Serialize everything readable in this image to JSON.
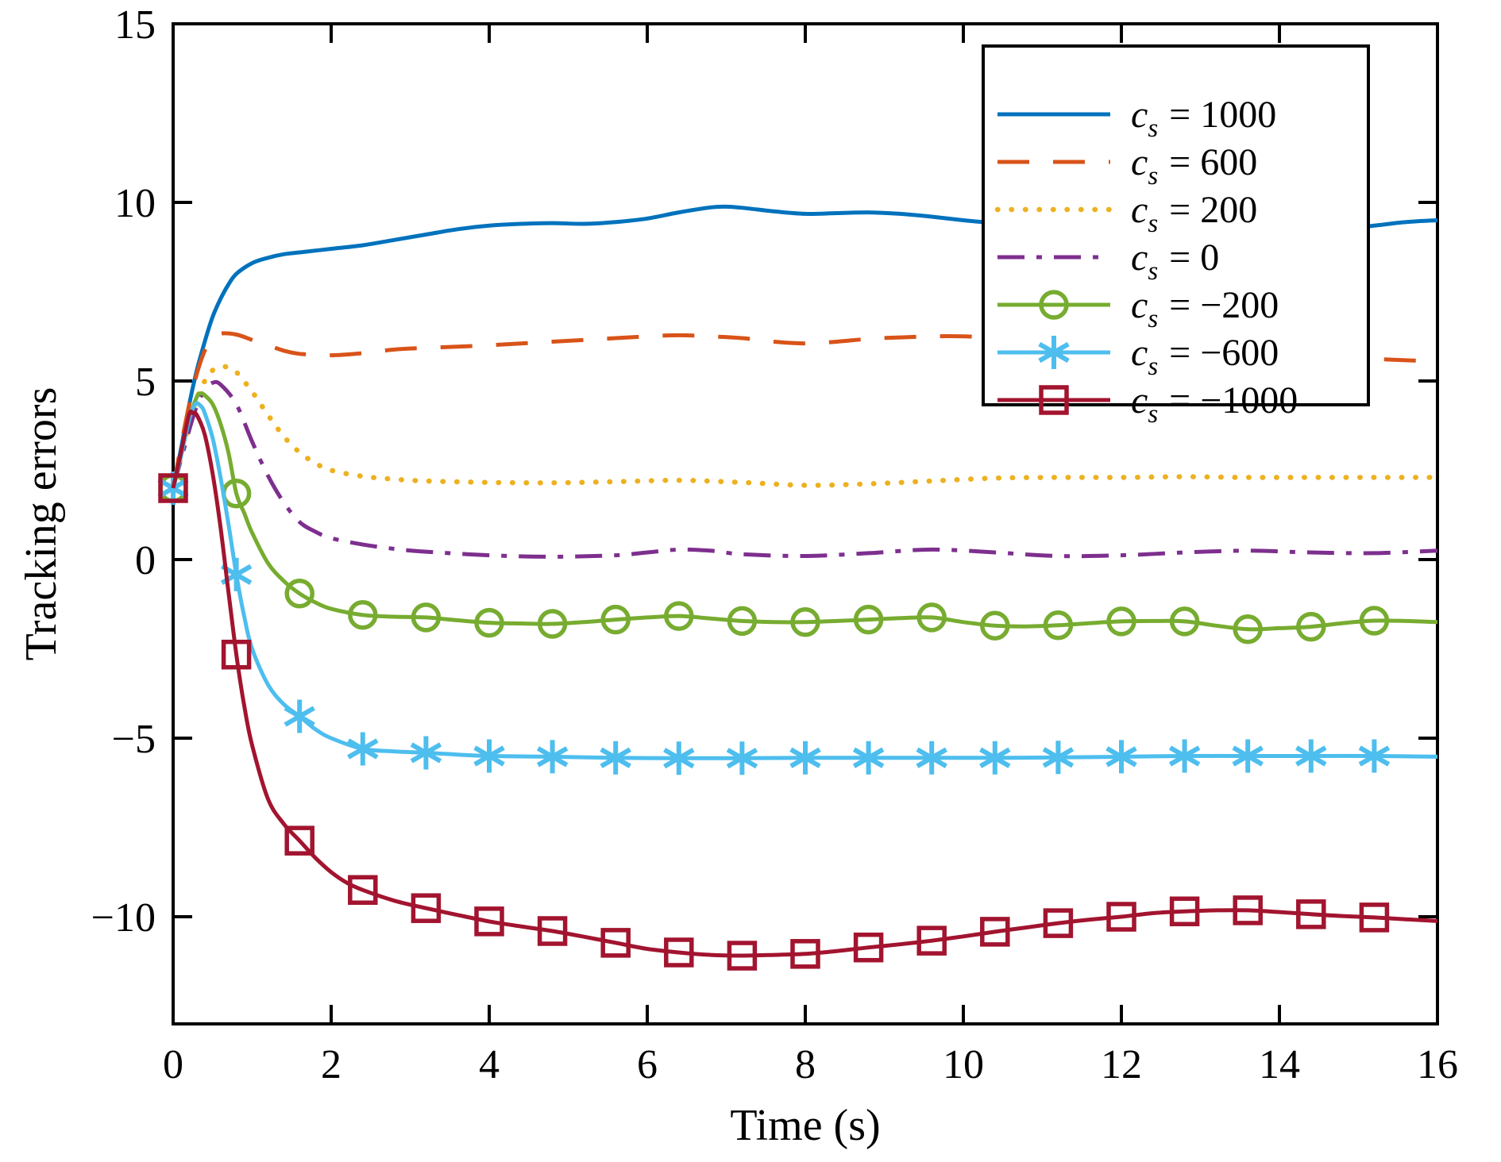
{
  "chart_data": {
    "type": "line",
    "title": "",
    "xlabel": "Time (s)",
    "ylabel": "Tracking errors",
    "xlim": [
      0,
      16
    ],
    "ylim": [
      -13,
      15
    ],
    "xticks": [
      0,
      2,
      4,
      6,
      8,
      10,
      12,
      14,
      16
    ],
    "yticks": [
      15,
      10,
      5,
      0,
      -5,
      -10
    ],
    "grid": false,
    "axis_color": "#000000",
    "background_color": "#ffffff",
    "legend_position": "top-right",
    "marker_step": 0.8,
    "marker_last_t": 15.2,
    "series": [
      {
        "name": "cs-1000",
        "label_value": "1000",
        "color": "#0072BD",
        "style": "solid",
        "marker": "none",
        "points": [
          [
            0,
            2.0
          ],
          [
            0.1,
            3.1
          ],
          [
            0.2,
            4.3
          ],
          [
            0.3,
            5.3
          ],
          [
            0.4,
            6.1
          ],
          [
            0.5,
            6.8
          ],
          [
            0.6,
            7.3
          ],
          [
            0.7,
            7.7
          ],
          [
            0.8,
            8.0
          ],
          [
            1.0,
            8.3
          ],
          [
            1.2,
            8.45
          ],
          [
            1.4,
            8.55
          ],
          [
            1.6,
            8.6
          ],
          [
            2.0,
            8.7
          ],
          [
            2.4,
            8.8
          ],
          [
            2.8,
            8.95
          ],
          [
            3.2,
            9.1
          ],
          [
            3.6,
            9.25
          ],
          [
            4.0,
            9.35
          ],
          [
            4.4,
            9.4
          ],
          [
            4.8,
            9.42
          ],
          [
            5.2,
            9.4
          ],
          [
            5.6,
            9.45
          ],
          [
            6.0,
            9.55
          ],
          [
            6.4,
            9.72
          ],
          [
            6.8,
            9.86
          ],
          [
            7.0,
            9.88
          ],
          [
            7.2,
            9.85
          ],
          [
            7.6,
            9.75
          ],
          [
            8.0,
            9.68
          ],
          [
            8.4,
            9.7
          ],
          [
            8.8,
            9.72
          ],
          [
            9.2,
            9.68
          ],
          [
            9.6,
            9.6
          ],
          [
            10.0,
            9.5
          ],
          [
            10.4,
            9.42
          ],
          [
            11.0,
            9.3
          ],
          [
            12.0,
            9.25
          ],
          [
            13.0,
            9.3
          ],
          [
            14.0,
            9.3
          ],
          [
            15.0,
            9.32
          ],
          [
            15.2,
            9.35
          ],
          [
            15.6,
            9.45
          ],
          [
            16,
            9.5
          ]
        ]
      },
      {
        "name": "cs-600",
        "label_value": "600",
        "color": "#D95319",
        "style": "dashed",
        "marker": "none",
        "points": [
          [
            0,
            2.0
          ],
          [
            0.1,
            3.2
          ],
          [
            0.2,
            4.3
          ],
          [
            0.3,
            5.2
          ],
          [
            0.4,
            5.85
          ],
          [
            0.5,
            6.2
          ],
          [
            0.6,
            6.33
          ],
          [
            0.8,
            6.3
          ],
          [
            1.0,
            6.15
          ],
          [
            1.2,
            6.0
          ],
          [
            1.4,
            5.85
          ],
          [
            1.6,
            5.76
          ],
          [
            2.0,
            5.72
          ],
          [
            2.4,
            5.78
          ],
          [
            2.8,
            5.88
          ],
          [
            3.2,
            5.93
          ],
          [
            3.6,
            5.96
          ],
          [
            4.0,
            6.0
          ],
          [
            4.4,
            6.05
          ],
          [
            4.8,
            6.1
          ],
          [
            5.2,
            6.15
          ],
          [
            5.6,
            6.2
          ],
          [
            6.0,
            6.25
          ],
          [
            6.4,
            6.28
          ],
          [
            6.8,
            6.25
          ],
          [
            7.2,
            6.2
          ],
          [
            7.6,
            6.1
          ],
          [
            8.0,
            6.05
          ],
          [
            8.4,
            6.1
          ],
          [
            8.8,
            6.18
          ],
          [
            9.2,
            6.22
          ],
          [
            9.6,
            6.25
          ],
          [
            10.0,
            6.25
          ],
          [
            10.4,
            6.2
          ],
          [
            11.0,
            6.1
          ],
          [
            11.6,
            6.0
          ],
          [
            12.2,
            5.95
          ],
          [
            12.8,
            5.9
          ],
          [
            13.4,
            5.85
          ],
          [
            14.0,
            5.8
          ],
          [
            14.6,
            5.7
          ],
          [
            15.2,
            5.62
          ],
          [
            15.6,
            5.58
          ],
          [
            16,
            5.55
          ]
        ]
      },
      {
        "name": "cs-200",
        "label_value": "200",
        "color": "#EDB120",
        "style": "dotted",
        "marker": "none",
        "points": [
          [
            0,
            2.0
          ],
          [
            0.1,
            2.9
          ],
          [
            0.2,
            3.8
          ],
          [
            0.3,
            4.5
          ],
          [
            0.4,
            5.0
          ],
          [
            0.5,
            5.3
          ],
          [
            0.6,
            5.4
          ],
          [
            0.7,
            5.38
          ],
          [
            0.8,
            5.25
          ],
          [
            1.0,
            4.7
          ],
          [
            1.2,
            4.05
          ],
          [
            1.4,
            3.45
          ],
          [
            1.6,
            3.0
          ],
          [
            1.8,
            2.7
          ],
          [
            2.0,
            2.5
          ],
          [
            2.4,
            2.33
          ],
          [
            2.8,
            2.25
          ],
          [
            3.2,
            2.2
          ],
          [
            4.0,
            2.16
          ],
          [
            4.8,
            2.15
          ],
          [
            5.6,
            2.18
          ],
          [
            6.4,
            2.22
          ],
          [
            7.2,
            2.16
          ],
          [
            8.0,
            2.08
          ],
          [
            8.8,
            2.12
          ],
          [
            9.6,
            2.2
          ],
          [
            10.4,
            2.28
          ],
          [
            11.2,
            2.3
          ],
          [
            12.0,
            2.3
          ],
          [
            12.8,
            2.32
          ],
          [
            13.6,
            2.3
          ],
          [
            14.4,
            2.3
          ],
          [
            15.2,
            2.3
          ],
          [
            16,
            2.3
          ]
        ]
      },
      {
        "name": "cs-0",
        "label_value": "0",
        "color": "#7E2F8E",
        "style": "dashdot",
        "marker": "none",
        "points": [
          [
            0,
            2.0
          ],
          [
            0.1,
            2.8
          ],
          [
            0.2,
            3.6
          ],
          [
            0.3,
            4.3
          ],
          [
            0.4,
            4.75
          ],
          [
            0.5,
            4.95
          ],
          [
            0.6,
            4.9
          ],
          [
            0.8,
            4.35
          ],
          [
            1.0,
            3.3
          ],
          [
            1.2,
            2.35
          ],
          [
            1.4,
            1.6
          ],
          [
            1.6,
            1.05
          ],
          [
            1.8,
            0.78
          ],
          [
            2.0,
            0.6
          ],
          [
            2.4,
            0.42
          ],
          [
            2.8,
            0.3
          ],
          [
            3.2,
            0.22
          ],
          [
            4.0,
            0.12
          ],
          [
            4.8,
            0.08
          ],
          [
            5.6,
            0.12
          ],
          [
            6.0,
            0.2
          ],
          [
            6.4,
            0.28
          ],
          [
            6.8,
            0.25
          ],
          [
            7.2,
            0.15
          ],
          [
            8.0,
            0.1
          ],
          [
            8.8,
            0.18
          ],
          [
            9.6,
            0.28
          ],
          [
            10.4,
            0.2
          ],
          [
            11.2,
            0.1
          ],
          [
            12.0,
            0.12
          ],
          [
            12.8,
            0.2
          ],
          [
            13.6,
            0.25
          ],
          [
            14.4,
            0.2
          ],
          [
            15.2,
            0.18
          ],
          [
            16,
            0.25
          ]
        ]
      },
      {
        "name": "cs-neg200",
        "label_value": "−200",
        "color": "#77AC30",
        "style": "solid",
        "marker": "circle",
        "points": [
          [
            0,
            2.0
          ],
          [
            0.1,
            2.9
          ],
          [
            0.2,
            3.9
          ],
          [
            0.3,
            4.55
          ],
          [
            0.35,
            4.65
          ],
          [
            0.4,
            4.6
          ],
          [
            0.5,
            4.35
          ],
          [
            0.6,
            3.8
          ],
          [
            0.7,
            3.0
          ],
          [
            0.8,
            1.85
          ],
          [
            0.9,
            1.3
          ],
          [
            1.0,
            0.75
          ],
          [
            1.2,
            -0.1
          ],
          [
            1.4,
            -0.6
          ],
          [
            1.6,
            -0.95
          ],
          [
            1.8,
            -1.2
          ],
          [
            2.0,
            -1.38
          ],
          [
            2.4,
            -1.55
          ],
          [
            2.8,
            -1.6
          ],
          [
            3.2,
            -1.62
          ],
          [
            3.6,
            -1.7
          ],
          [
            4.0,
            -1.77
          ],
          [
            4.4,
            -1.79
          ],
          [
            4.8,
            -1.8
          ],
          [
            5.2,
            -1.75
          ],
          [
            5.6,
            -1.68
          ],
          [
            6.0,
            -1.62
          ],
          [
            6.4,
            -1.58
          ],
          [
            6.8,
            -1.65
          ],
          [
            7.2,
            -1.72
          ],
          [
            7.6,
            -1.75
          ],
          [
            8.0,
            -1.75
          ],
          [
            8.4,
            -1.72
          ],
          [
            8.8,
            -1.68
          ],
          [
            9.2,
            -1.64
          ],
          [
            9.6,
            -1.62
          ],
          [
            10.0,
            -1.75
          ],
          [
            10.4,
            -1.85
          ],
          [
            10.8,
            -1.87
          ],
          [
            11.2,
            -1.84
          ],
          [
            11.6,
            -1.78
          ],
          [
            12.0,
            -1.73
          ],
          [
            12.4,
            -1.72
          ],
          [
            12.8,
            -1.73
          ],
          [
            13.2,
            -1.85
          ],
          [
            13.6,
            -1.95
          ],
          [
            14.0,
            -1.92
          ],
          [
            14.4,
            -1.88
          ],
          [
            14.8,
            -1.78
          ],
          [
            15.2,
            -1.71
          ],
          [
            15.6,
            -1.72
          ],
          [
            16,
            -1.75
          ]
        ]
      },
      {
        "name": "cs-neg600",
        "label_value": "−600",
        "color": "#4DBEEE",
        "style": "solid",
        "marker": "asterisk",
        "points": [
          [
            0,
            2.0
          ],
          [
            0.1,
            2.9
          ],
          [
            0.2,
            3.9
          ],
          [
            0.28,
            4.35
          ],
          [
            0.35,
            4.3
          ],
          [
            0.4,
            4.1
          ],
          [
            0.5,
            3.4
          ],
          [
            0.6,
            2.3
          ],
          [
            0.7,
            1.0
          ],
          [
            0.8,
            -0.42
          ],
          [
            0.9,
            -1.6
          ],
          [
            1.0,
            -2.5
          ],
          [
            1.2,
            -3.5
          ],
          [
            1.4,
            -4.05
          ],
          [
            1.6,
            -4.39
          ],
          [
            1.8,
            -4.75
          ],
          [
            2.0,
            -5.0
          ],
          [
            2.4,
            -5.3
          ],
          [
            2.8,
            -5.37
          ],
          [
            3.2,
            -5.41
          ],
          [
            3.6,
            -5.46
          ],
          [
            4.0,
            -5.5
          ],
          [
            4.8,
            -5.52
          ],
          [
            5.6,
            -5.55
          ],
          [
            6.4,
            -5.56
          ],
          [
            7.2,
            -5.56
          ],
          [
            8.0,
            -5.55
          ],
          [
            8.8,
            -5.55
          ],
          [
            9.6,
            -5.55
          ],
          [
            10.4,
            -5.55
          ],
          [
            11.2,
            -5.54
          ],
          [
            12.0,
            -5.52
          ],
          [
            12.8,
            -5.5
          ],
          [
            13.6,
            -5.5
          ],
          [
            14.4,
            -5.5
          ],
          [
            15.2,
            -5.5
          ],
          [
            16,
            -5.52
          ]
        ]
      },
      {
        "name": "cs-neg1000",
        "label_value": "−1000",
        "color": "#A2142F",
        "style": "solid",
        "marker": "square",
        "points": [
          [
            0,
            2.0
          ],
          [
            0.1,
            3.0
          ],
          [
            0.2,
            4.05
          ],
          [
            0.25,
            4.1
          ],
          [
            0.3,
            4.05
          ],
          [
            0.4,
            3.5
          ],
          [
            0.5,
            2.4
          ],
          [
            0.6,
            0.9
          ],
          [
            0.7,
            -0.9
          ],
          [
            0.8,
            -2.66
          ],
          [
            0.9,
            -4.1
          ],
          [
            1.0,
            -5.2
          ],
          [
            1.2,
            -6.7
          ],
          [
            1.4,
            -7.4
          ],
          [
            1.6,
            -7.87
          ],
          [
            1.8,
            -8.35
          ],
          [
            2.0,
            -8.75
          ],
          [
            2.2,
            -9.05
          ],
          [
            2.4,
            -9.25
          ],
          [
            2.8,
            -9.55
          ],
          [
            3.2,
            -9.76
          ],
          [
            3.6,
            -9.95
          ],
          [
            4.0,
            -10.13
          ],
          [
            4.4,
            -10.27
          ],
          [
            4.8,
            -10.4
          ],
          [
            5.2,
            -10.56
          ],
          [
            5.6,
            -10.73
          ],
          [
            6.0,
            -10.9
          ],
          [
            6.4,
            -11.0
          ],
          [
            6.8,
            -11.07
          ],
          [
            7.2,
            -11.09
          ],
          [
            7.6,
            -11.07
          ],
          [
            8.0,
            -11.04
          ],
          [
            8.4,
            -10.96
          ],
          [
            8.8,
            -10.86
          ],
          [
            9.2,
            -10.77
          ],
          [
            9.6,
            -10.67
          ],
          [
            10.0,
            -10.55
          ],
          [
            10.4,
            -10.42
          ],
          [
            10.8,
            -10.3
          ],
          [
            11.2,
            -10.18
          ],
          [
            11.6,
            -10.08
          ],
          [
            12.0,
            -10.0
          ],
          [
            12.4,
            -9.9
          ],
          [
            12.8,
            -9.85
          ],
          [
            13.2,
            -9.82
          ],
          [
            13.6,
            -9.82
          ],
          [
            14.0,
            -9.87
          ],
          [
            14.4,
            -9.93
          ],
          [
            14.8,
            -9.98
          ],
          [
            15.2,
            -10.02
          ],
          [
            15.6,
            -10.07
          ],
          [
            16,
            -10.12
          ]
        ]
      }
    ],
    "legend": {
      "var_prefix": "c",
      "var_subscript": "s",
      "equals_sign": "="
    }
  }
}
